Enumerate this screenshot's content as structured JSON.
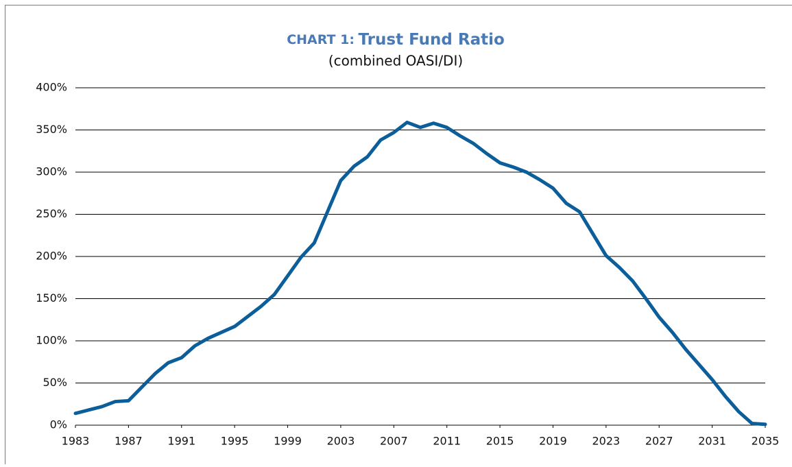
{
  "chart_data": {
    "type": "line",
    "chart_label": "CHART 1:",
    "title": "Trust Fund Ratio",
    "subtitle": "(combined OASI/DI)",
    "x": [
      1983,
      1984,
      1985,
      1986,
      1987,
      1988,
      1989,
      1990,
      1991,
      1992,
      1993,
      1994,
      1995,
      1996,
      1997,
      1998,
      1999,
      2000,
      2001,
      2002,
      2003,
      2004,
      2005,
      2006,
      2007,
      2008,
      2009,
      2010,
      2011,
      2012,
      2013,
      2014,
      2015,
      2016,
      2017,
      2018,
      2019,
      2020,
      2021,
      2022,
      2023,
      2024,
      2025,
      2026,
      2027,
      2028,
      2029,
      2030,
      2031,
      2032,
      2033,
      2034,
      2035
    ],
    "series": [
      {
        "color": "#0b5e9a",
        "values": [
          14,
          18,
          22,
          28,
          29,
          45,
          61,
          74,
          80,
          94,
          103,
          110,
          117,
          129,
          141,
          155,
          177,
          199,
          216,
          253,
          290,
          307,
          318,
          338,
          347,
          359,
          353,
          358,
          353,
          343,
          334,
          322,
          311,
          306,
          300,
          291,
          281,
          263,
          253,
          227,
          201,
          187,
          171,
          150,
          128,
          110,
          90,
          72,
          54,
          34,
          16,
          2,
          1
        ]
      }
    ],
    "xlim": [
      1983,
      2035
    ],
    "xticks": [
      1983,
      1987,
      1991,
      1995,
      1999,
      2003,
      2007,
      2011,
      2015,
      2019,
      2023,
      2027,
      2031,
      2035
    ],
    "ylim": [
      0,
      400
    ],
    "yticks": [
      {
        "value": 0,
        "label": "0%"
      },
      {
        "value": 50,
        "label": "50%"
      },
      {
        "value": 100,
        "label": "100%"
      },
      {
        "value": 150,
        "label": "150%"
      },
      {
        "value": 200,
        "label": "200%"
      },
      {
        "value": 250,
        "label": "250%"
      },
      {
        "value": 300,
        "label": "300%"
      },
      {
        "value": 350,
        "label": "350%"
      },
      {
        "value": 400,
        "label": "400%"
      }
    ],
    "grid": true
  }
}
